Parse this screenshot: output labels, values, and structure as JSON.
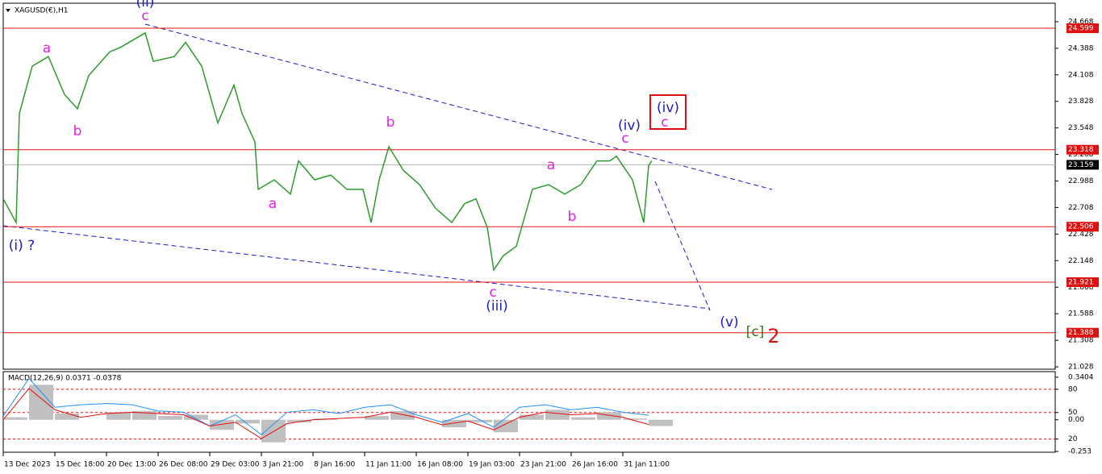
{
  "chart_data": [
    {
      "type": "line",
      "title": "XAGUSD(€),H1",
      "color": "#2e9a2e",
      "x": [
        0,
        8,
        10,
        18,
        28,
        38,
        46,
        53,
        66,
        73,
        83,
        88,
        93,
        106,
        113,
        123,
        133,
        143,
        148,
        156,
        158,
        168,
        178,
        183,
        193,
        203,
        213,
        223,
        228,
        233,
        239,
        248,
        258,
        268,
        278,
        286,
        293,
        300,
        304,
        310,
        318,
        328,
        338,
        348,
        358,
        368,
        376,
        380,
        390,
        397,
        400,
        402
      ],
      "values": [
        22.8,
        22.55,
        23.7,
        24.2,
        24.3,
        23.9,
        23.75,
        24.1,
        24.35,
        24.4,
        24.5,
        24.55,
        24.25,
        24.3,
        24.45,
        24.2,
        23.6,
        24.0,
        23.7,
        23.4,
        22.9,
        23.0,
        22.85,
        23.2,
        23.0,
        23.05,
        22.9,
        22.9,
        22.55,
        23.0,
        23.35,
        23.1,
        22.95,
        22.7,
        22.55,
        22.75,
        22.8,
        22.5,
        22.05,
        22.2,
        22.3,
        22.9,
        22.95,
        22.85,
        22.95,
        23.2,
        23.2,
        23.25,
        23.0,
        22.55,
        23.15,
        23.2
      ],
      "xlim": [
        0,
        652
      ],
      "xticks": [
        {
          "value": 0,
          "label": "13 Dec 2023"
        },
        {
          "value": 32,
          "label": "15 Dec 18:00"
        },
        {
          "value": 64,
          "label": "20 Dec 13:00"
        },
        {
          "value": 96,
          "label": "26 Dec 08:00"
        },
        {
          "value": 128,
          "label": "29 Dec 03:00"
        },
        {
          "value": 160,
          "label": "3 Jan 21:00"
        },
        {
          "value": 192,
          "label": "8 Jan 16:00"
        },
        {
          "value": 224,
          "label": "11 Jan 11:00"
        },
        {
          "value": 256,
          "label": "16 Jan 08:00"
        },
        {
          "value": 288,
          "label": "19 Jan 03:00"
        },
        {
          "value": 320,
          "label": "23 Jan 21:00"
        },
        {
          "value": 352,
          "label": "26 Jan 16:00"
        },
        {
          "value": 384,
          "label": "31 Jan 11:00"
        }
      ],
      "ylim": [
        21.003,
        24.863
      ],
      "yticks": [
        24.668,
        24.388,
        24.108,
        23.828,
        23.548,
        23.268,
        22.988,
        22.708,
        22.428,
        22.148,
        21.868,
        21.588,
        21.308,
        21.028
      ],
      "levels": [
        24.599,
        23.318,
        22.506,
        21.921,
        21.388
      ],
      "level_color": "#e01010",
      "current_price": 23.159,
      "annotations": [
        "(ii)",
        "c",
        "a",
        "b",
        "(i) ?",
        "a",
        "b",
        "c",
        "(iii)",
        "a",
        "b",
        "c",
        "(iv)",
        "(iv)",
        "c",
        "(v)",
        "[c]",
        "2"
      ]
    },
    {
      "type": "macd",
      "title": "MACD(12,26,9) 0.0371 -0.0378",
      "x": [
        0,
        16,
        32,
        48,
        64,
        80,
        96,
        112,
        128,
        144,
        160,
        176,
        192,
        208,
        224,
        240,
        256,
        272,
        288,
        304,
        320,
        336,
        352,
        368,
        384,
        400
      ],
      "histogram": [
        0.02,
        0.28,
        0.05,
        0.0,
        0.06,
        0.07,
        0.03,
        0.04,
        -0.08,
        -0.03,
        -0.18,
        -0.02,
        0.01,
        0.0,
        0.03,
        0.07,
        0.0,
        -0.06,
        -0.02,
        -0.1,
        0.04,
        0.08,
        0.02,
        0.06,
        0.01,
        -0.05
      ],
      "series": [
        {
          "name": "MACD",
          "color": "#1e90ff",
          "values": [
            0.03,
            0.33,
            0.1,
            0.12,
            0.13,
            0.12,
            0.07,
            0.06,
            -0.05,
            0.04,
            -0.12,
            0.06,
            0.08,
            0.05,
            0.1,
            0.12,
            0.04,
            -0.02,
            0.05,
            -0.06,
            0.1,
            0.12,
            0.08,
            0.1,
            0.06,
            0.0371
          ]
        },
        {
          "name": "Signal",
          "color": "#e01010",
          "values": [
            0.0,
            0.25,
            0.08,
            0.02,
            0.05,
            0.06,
            0.05,
            0.04,
            -0.05,
            -0.02,
            -0.15,
            -0.03,
            0.0,
            0.01,
            0.02,
            0.06,
            0.02,
            -0.04,
            -0.01,
            -0.08,
            0.02,
            0.06,
            0.04,
            0.05,
            0.02,
            -0.0378
          ]
        }
      ],
      "ylim": [
        -0.253,
        0.372
      ],
      "yticks": [
        0.3404,
        {
          "value": 0.244,
          "label": "80"
        },
        {
          "value": 0.058,
          "label": "50"
        },
        {
          "value": 0,
          "label": "0.00"
        },
        {
          "value": -0.154,
          "label": "20"
        },
        -0.253
      ]
    }
  ]
}
